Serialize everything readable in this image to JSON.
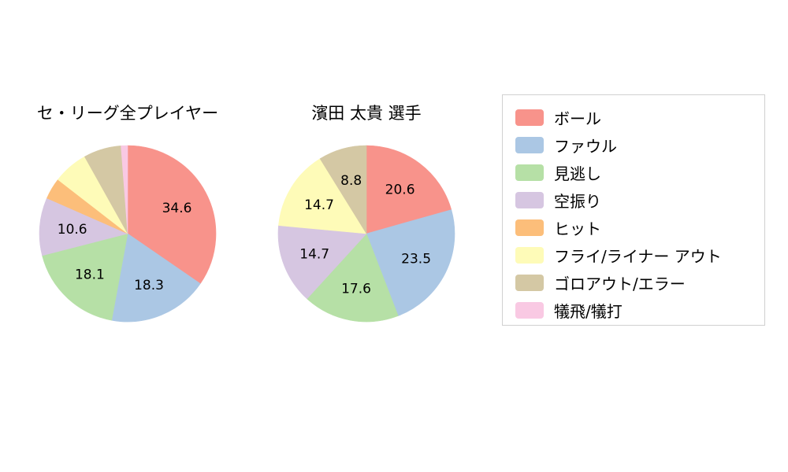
{
  "chart_data": [
    {
      "type": "pie",
      "title": "セ・リーグ全プレイヤー",
      "categories": [
        "ボール",
        "ファウル",
        "見逃し",
        "空振り",
        "ヒット",
        "フライ/ライナー アウト",
        "ゴロアウト/エラー",
        "犠飛/犠打"
      ],
      "values": [
        34.6,
        18.3,
        18.1,
        10.6,
        3.9,
        6.4,
        6.9,
        1.2
      ],
      "labels_shown": [
        "34.6",
        "18.3",
        "18.1",
        "10.6",
        "",
        "",
        "",
        ""
      ],
      "start_angle": "top",
      "direction": "clockwise"
    },
    {
      "type": "pie",
      "title": "濱田 太貴  選手",
      "categories": [
        "ボール",
        "ファウル",
        "見逃し",
        "空振り",
        "フライ/ライナー アウト",
        "ゴロアウト/エラー"
      ],
      "values": [
        20.6,
        23.5,
        17.6,
        14.7,
        14.7,
        8.8
      ],
      "labels_shown": [
        "20.6",
        "23.5",
        "17.6",
        "14.7",
        "14.7",
        "8.8"
      ],
      "start_angle": "top",
      "direction": "clockwise"
    }
  ],
  "colors": {
    "ボール": "#f8938b",
    "ファウル": "#abc7e4",
    "見逃し": "#b6e0a6",
    "空振り": "#d6c6e1",
    "ヒット": "#fcbe7a",
    "フライ/ライナー アウト": "#fefbb8",
    "ゴロアウト/エラー": "#d4c8a4",
    "犠飛/犠打": "#f9c9e3"
  },
  "legend": {
    "items": [
      {
        "label": "ボール",
        "color": "#f8938b"
      },
      {
        "label": "ファウル",
        "color": "#abc7e4"
      },
      {
        "label": "見逃し",
        "color": "#b6e0a6"
      },
      {
        "label": "空振り",
        "color": "#d6c6e1"
      },
      {
        "label": "ヒット",
        "color": "#fcbe7a"
      },
      {
        "label": "フライ/ライナー アウト",
        "color": "#fefbb8"
      },
      {
        "label": "ゴロアウト/エラー",
        "color": "#d4c8a4"
      },
      {
        "label": "犠飛/犠打",
        "color": "#f9c9e3"
      }
    ]
  }
}
